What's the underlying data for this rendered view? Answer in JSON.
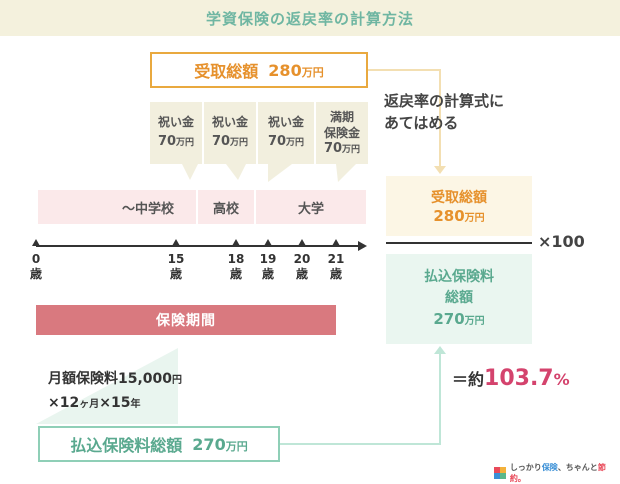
{
  "title": "学資保険の返戻率の計算方法",
  "receive_total": {
    "label": "受取総額",
    "amount": "280",
    "unit": "万円"
  },
  "payouts": [
    {
      "label": "祝い金",
      "amount": "70",
      "unit": "万円"
    },
    {
      "label": "祝い金",
      "amount": "70",
      "unit": "万円"
    },
    {
      "label": "祝い金",
      "amount": "70",
      "unit": "万円"
    },
    {
      "label_line1": "満期",
      "label_line2": "保険金",
      "amount": "70",
      "unit": "万円"
    }
  ],
  "education_stages": [
    "〜中学校",
    "高校",
    "大学"
  ],
  "ages": [
    {
      "num": "0",
      "suffix": "歳"
    },
    {
      "num": "15",
      "suffix": "歳"
    },
    {
      "num": "18",
      "suffix": "歳"
    },
    {
      "num": "19",
      "suffix": "歳"
    },
    {
      "num": "20",
      "suffix": "歳"
    },
    {
      "num": "21",
      "suffix": "歳"
    }
  ],
  "insurance_period": "保険期間",
  "monthly": {
    "line1_prefix": "月額保険料",
    "line1_amount": "15,000",
    "line1_unit": "円",
    "line2_a": "×12",
    "line2_b": "ヶ月",
    "line2_c": "×15",
    "line2_d": "年"
  },
  "paid_total": {
    "label": "払込保険料総額",
    "amount": "270",
    "unit": "万円"
  },
  "calc_note": {
    "line1": "返戻率の計算式に",
    "line2": "あてはめる"
  },
  "fraction": {
    "numerator_label": "受取総額",
    "numerator_amount": "280",
    "numerator_unit": "万円",
    "denominator_label1": "払込保険料",
    "denominator_label2": "総額",
    "denominator_amount": "270",
    "denominator_unit": "万円",
    "multiplier": "×100"
  },
  "result": {
    "prefix": "＝約",
    "value": "103.7",
    "unit": "%"
  },
  "logo": {
    "text_a": "しっかり",
    "text_b": "保険",
    "text_c": "、ちゃんと",
    "text_d": "節約。"
  },
  "colors": {
    "accent_orange": "#e6912c",
    "accent_green": "#5aa98f",
    "accent_pink": "#d4436d",
    "period_bar": "#d9797f"
  }
}
